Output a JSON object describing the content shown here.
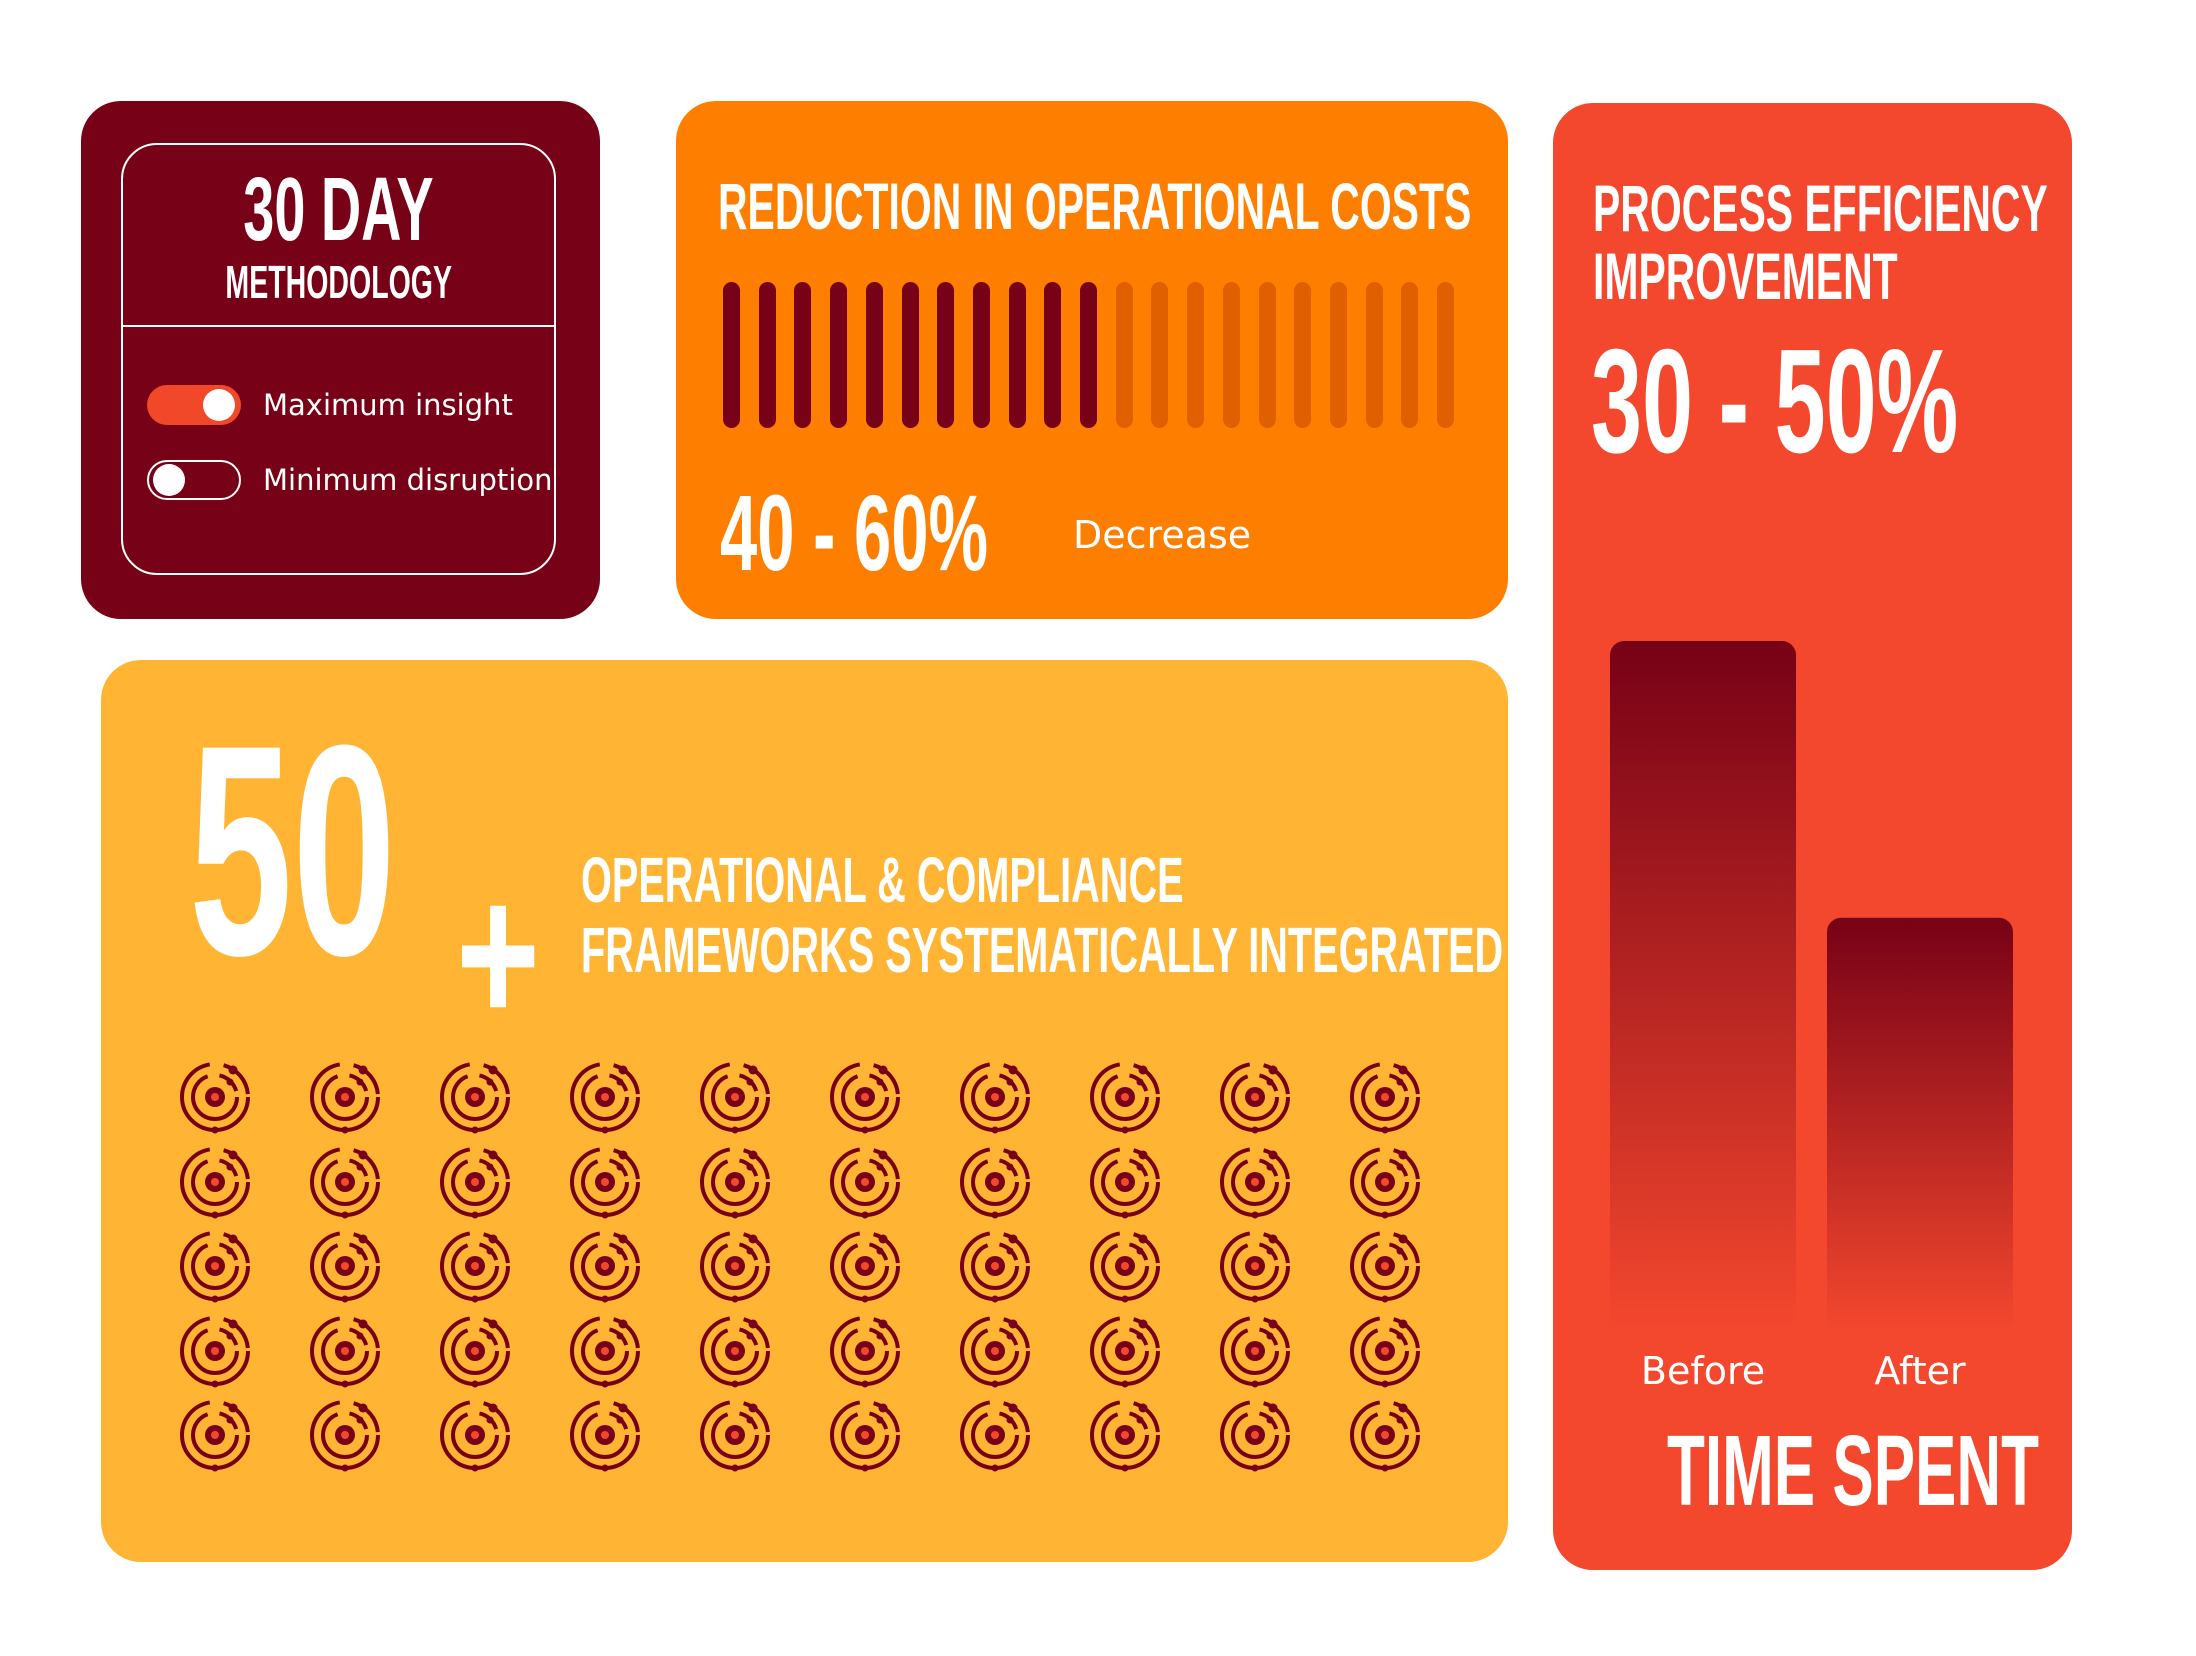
{
  "methodology": {
    "title_big": "30 DAY",
    "title_small": "METHODOLOGY",
    "toggles": [
      {
        "label": "Maximum insight",
        "on": true
      },
      {
        "label": "Minimum disruption",
        "on": false
      }
    ]
  },
  "reduction": {
    "title": "REDUCTION IN OPERATIONAL COSTS",
    "value": "40 - 60%",
    "suffix": "Decrease",
    "bars_total": 21,
    "bars_filled": 11,
    "colors": {
      "filled": "#770116",
      "empty": "#e06000"
    }
  },
  "frameworks": {
    "number": "50",
    "plus": "+",
    "line1": "OPERATIONAL & COMPLIANCE",
    "line2": "FRAMEWORKS SYSTEMATICALLY INTEGRATED",
    "icon_count": 50,
    "icon_name": "framework-orbit-icon",
    "icon_color": "#770116"
  },
  "efficiency": {
    "title_line1": "PROCESS EFFICIENCY",
    "title_line2": "IMPROVEMENT",
    "value": "30 - 50%",
    "footer": "TIME SPENT"
  },
  "chart_data": {
    "type": "bar",
    "categories": [
      "Before",
      "After"
    ],
    "values": [
      100,
      60
    ],
    "title": "TIME SPENT",
    "ylim": [
      0,
      100
    ]
  }
}
